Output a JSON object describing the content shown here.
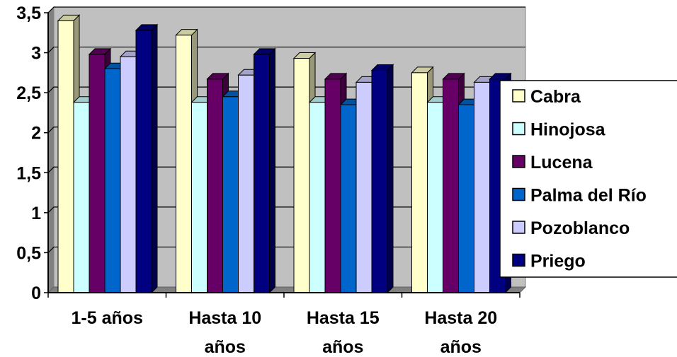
{
  "chart_data": {
    "type": "bar",
    "title": "",
    "xlabel": "",
    "ylabel": "",
    "ylim": [
      0,
      3.5
    ],
    "y_ticks": [
      "0",
      "0,5",
      "1",
      "1,5",
      "2",
      "2,5",
      "3",
      "3,5"
    ],
    "categories": [
      [
        "1-5 años"
      ],
      [
        "Hasta 10",
        "años"
      ],
      [
        "Hasta 15",
        "años"
      ],
      [
        "Hasta 20",
        "años"
      ]
    ],
    "grid": true,
    "legend_position": "right",
    "series": [
      {
        "name": "Cabra",
        "color": "#FFFFCC",
        "values": [
          3.4,
          3.22,
          2.93,
          2.75
        ]
      },
      {
        "name": "Hinojosa",
        "color": "#CCFFFF",
        "values": [
          2.38,
          2.38,
          2.38,
          2.38
        ]
      },
      {
        "name": "Lucena",
        "color": "#660066",
        "values": [
          2.98,
          2.67,
          2.67,
          2.67
        ]
      },
      {
        "name": "Palma del Río",
        "color": "#0066CC",
        "values": [
          2.8,
          2.45,
          2.35,
          2.35
        ]
      },
      {
        "name": "Pozoblanco",
        "color": "#CCCCFF",
        "values": [
          2.95,
          2.72,
          2.63,
          2.63
        ]
      },
      {
        "name": "Priego",
        "color": "#000080",
        "values": [
          3.28,
          2.98,
          2.78,
          2.67
        ]
      }
    ]
  }
}
